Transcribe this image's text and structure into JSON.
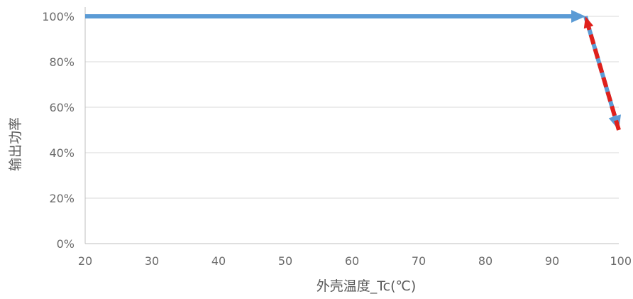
{
  "chart_data": {
    "type": "line",
    "title": "",
    "xlabel": "外壳温度_Tc(℃)",
    "ylabel": "输出功率",
    "xlim": [
      20,
      100
    ],
    "ylim": [
      0,
      100
    ],
    "x_ticks": [
      20,
      30,
      40,
      50,
      60,
      70,
      80,
      90,
      100
    ],
    "x_tick_labels": [
      "20",
      "30",
      "40",
      "50",
      "60",
      "70",
      "80",
      "90",
      "100"
    ],
    "y_ticks": [
      0,
      20,
      40,
      60,
      80,
      100
    ],
    "y_tick_labels": [
      "0%",
      "20%",
      "40%",
      "60%",
      "80%",
      "100%"
    ],
    "grid": true,
    "legend": "none",
    "series": [
      {
        "color": "#5b9bd5",
        "style": "solid",
        "arrow": "end",
        "points": [
          [
            20,
            100
          ],
          [
            95,
            100
          ]
        ]
      },
      {
        "color": "#5b9bd5",
        "style": "solid",
        "arrow": "end",
        "points": [
          [
            95,
            100
          ],
          [
            100,
            50
          ]
        ]
      },
      {
        "color": "#e0201b",
        "style": "dashed",
        "arrow": "end",
        "points": [
          [
            100,
            50
          ],
          [
            95,
            100
          ]
        ]
      }
    ]
  }
}
